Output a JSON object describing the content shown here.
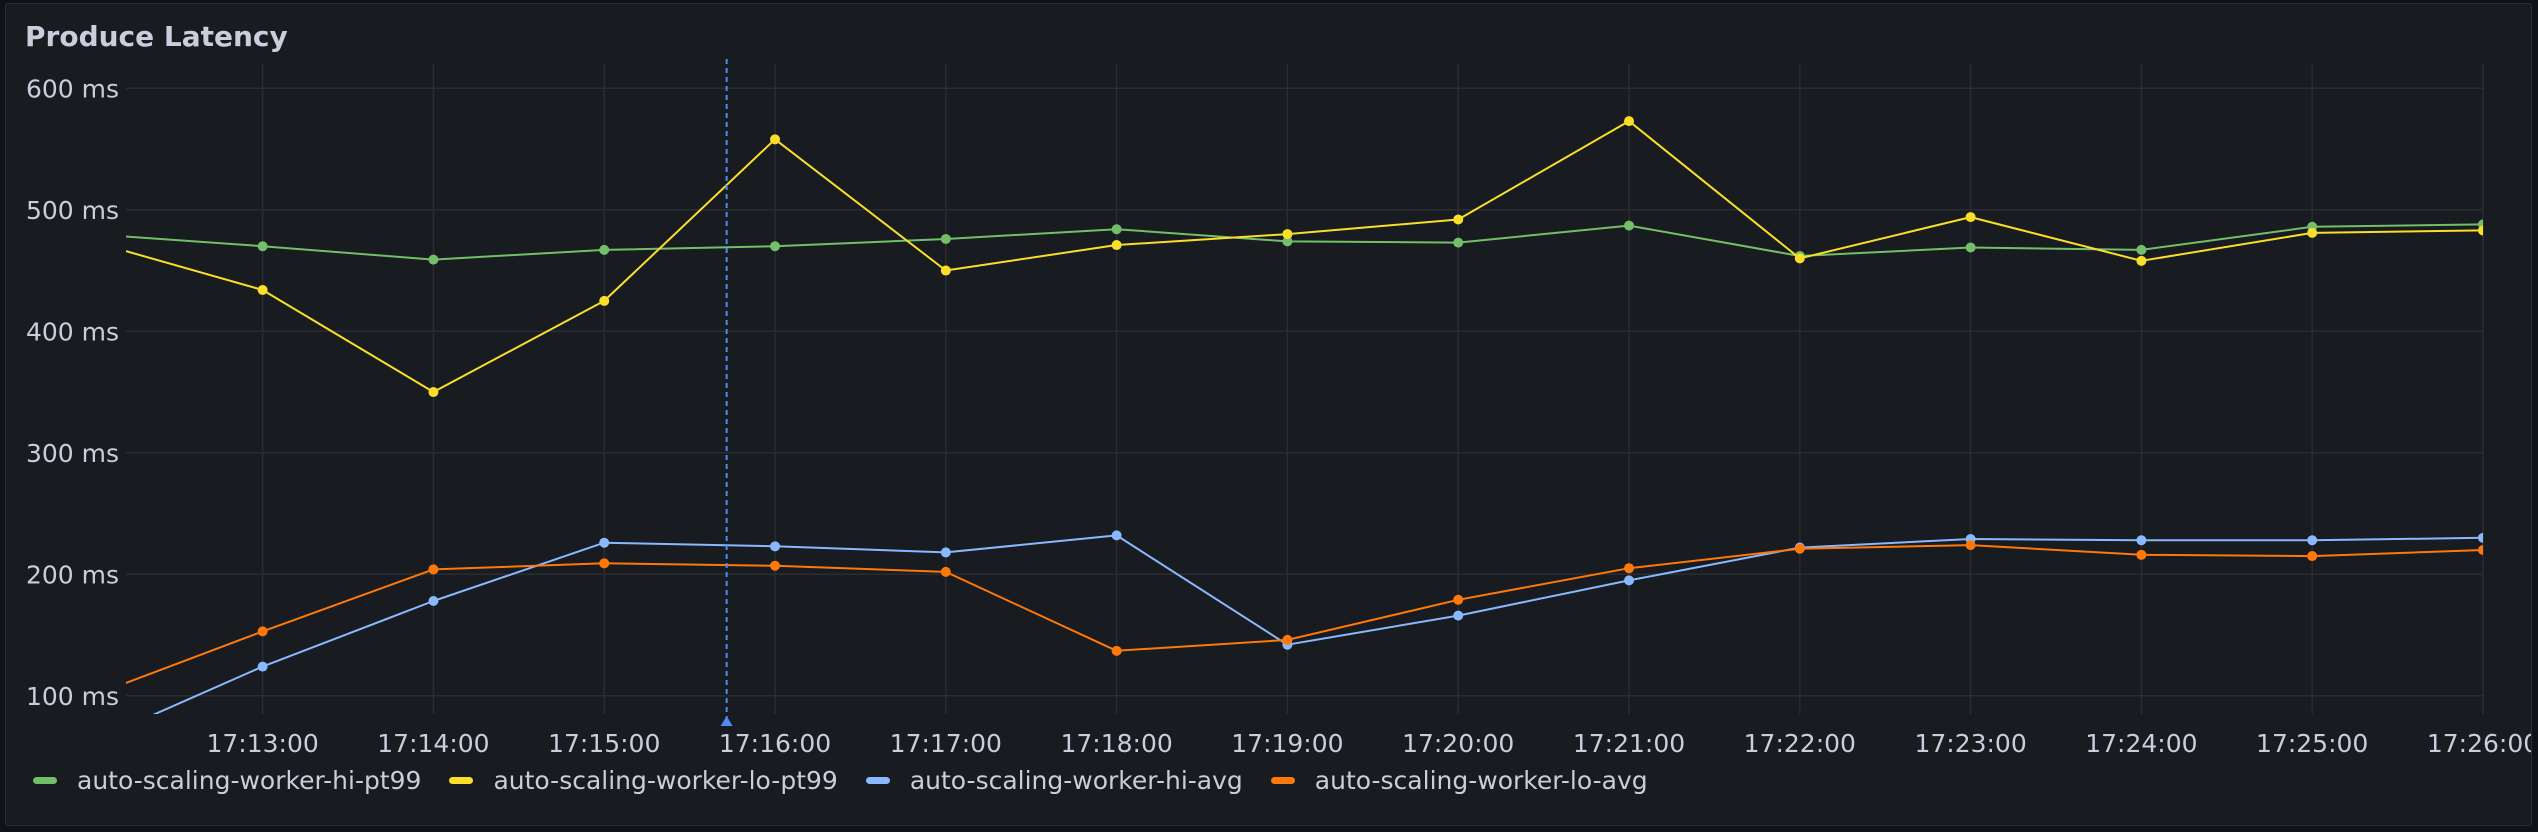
{
  "panel": {
    "title": "Produce Latency"
  },
  "chart_data": {
    "type": "line",
    "title": "Produce Latency",
    "xlabel": "",
    "ylabel": "",
    "y_unit": "ms",
    "ylim": [
      85,
      620
    ],
    "xlim": [
      "17:12:12",
      "17:26:00"
    ],
    "x_ticks": [
      "17:13:00",
      "17:14:00",
      "17:15:00",
      "17:16:00",
      "17:17:00",
      "17:18:00",
      "17:19:00",
      "17:20:00",
      "17:21:00",
      "17:22:00",
      "17:23:00",
      "17:24:00",
      "17:25:00",
      "17:26:00"
    ],
    "y_ticks": [
      100,
      200,
      300,
      400,
      500,
      600
    ],
    "y_tick_labels": [
      "100 ms",
      "200 ms",
      "300 ms",
      "400 ms",
      "500 ms",
      "600 ms"
    ],
    "grid": true,
    "legend_position": "bottom-left",
    "crosshair_time": "17:15:43",
    "x": [
      "17:12:00",
      "17:13:00",
      "17:14:00",
      "17:15:00",
      "17:16:00",
      "17:17:00",
      "17:18:00",
      "17:19:00",
      "17:20:00",
      "17:21:00",
      "17:22:00",
      "17:23:00",
      "17:24:00",
      "17:25:00",
      "17:26:00"
    ],
    "series": [
      {
        "name": "auto-scaling-worker-hi-pt99",
        "color": "#73bf69",
        "values": [
          480,
          470,
          459,
          467,
          470,
          476,
          484,
          474,
          473,
          487,
          462,
          469,
          467,
          486,
          488
        ]
      },
      {
        "name": "auto-scaling-worker-lo-pt99",
        "color": "#fade2a",
        "values": [
          474,
          434,
          350,
          425,
          558,
          450,
          471,
          480,
          492,
          573,
          460,
          494,
          458,
          481,
          483
        ]
      },
      {
        "name": "auto-scaling-worker-hi-avg",
        "color": "#8ab8ff",
        "values": [
          62,
          124,
          178,
          226,
          223,
          218,
          232,
          142,
          166,
          195,
          222,
          229,
          228,
          228,
          230
        ]
      },
      {
        "name": "auto-scaling-worker-lo-avg",
        "color": "#ff780a",
        "values": [
          100,
          153,
          204,
          209,
          207,
          202,
          137,
          146,
          179,
          205,
          221,
          224,
          216,
          215,
          220
        ]
      }
    ]
  }
}
